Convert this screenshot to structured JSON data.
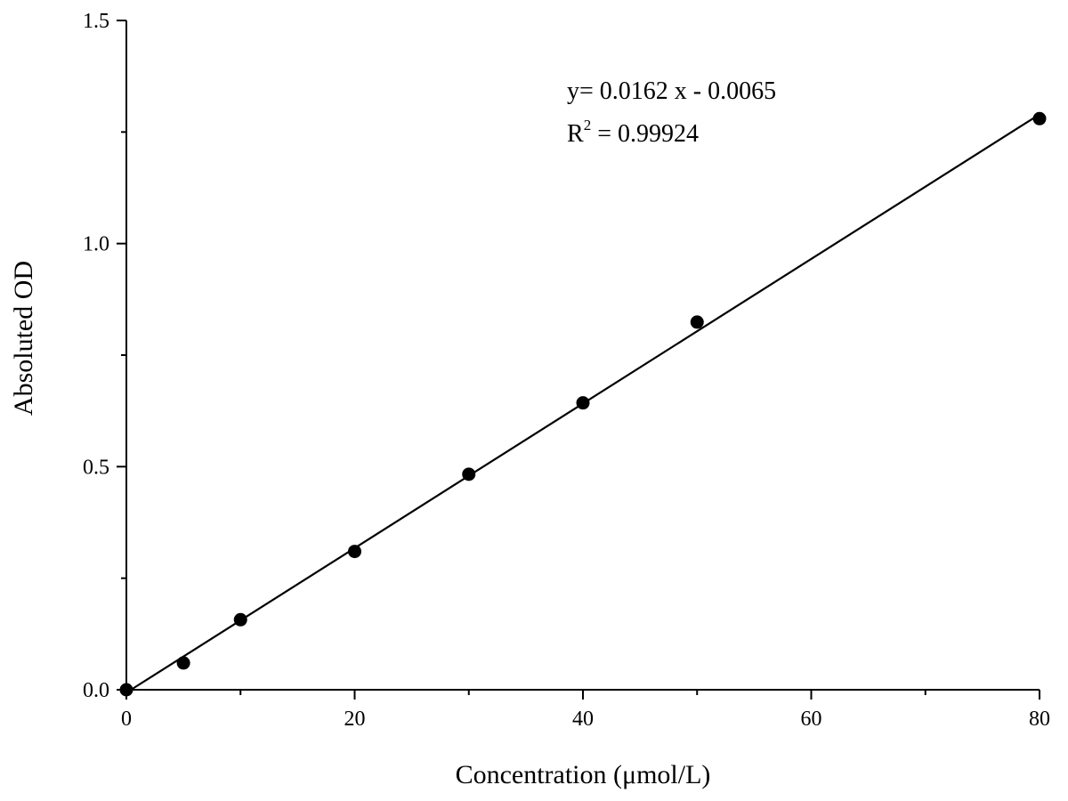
{
  "chart_data": {
    "type": "scatter",
    "xlabel": "Concentration (μmol/L)",
    "ylabel": "Absoluted OD",
    "xlim": [
      0,
      80
    ],
    "ylim": [
      0,
      1.5
    ],
    "xticks": [
      0,
      20,
      40,
      60,
      80
    ],
    "xtick_labels": [
      "0",
      "20",
      "40",
      "60",
      "80"
    ],
    "yticks": [
      0,
      0.5,
      1.0,
      1.5
    ],
    "ytick_labels": [
      "0.0",
      "0.5",
      "1.0",
      "1.5"
    ],
    "x_minor_step": 10,
    "y_minor_step": 0.25,
    "grid": false,
    "points": {
      "x": [
        0,
        5,
        10,
        20,
        30,
        40,
        50,
        80
      ],
      "y": [
        0.0,
        0.06,
        0.157,
        0.31,
        0.483,
        0.643,
        0.824,
        1.28
      ]
    },
    "fit": {
      "slope": 0.0162,
      "intercept": -0.0065,
      "x_range": [
        0,
        80
      ]
    },
    "annotations": {
      "equation": "y= 0.0162 x - 0.0065",
      "r2_prefix": "R",
      "r2_superscript": "2",
      "r2_value": " = 0.99924"
    },
    "colors": {
      "marker": "#000000",
      "line": "#000000",
      "axis": "#000000"
    }
  }
}
